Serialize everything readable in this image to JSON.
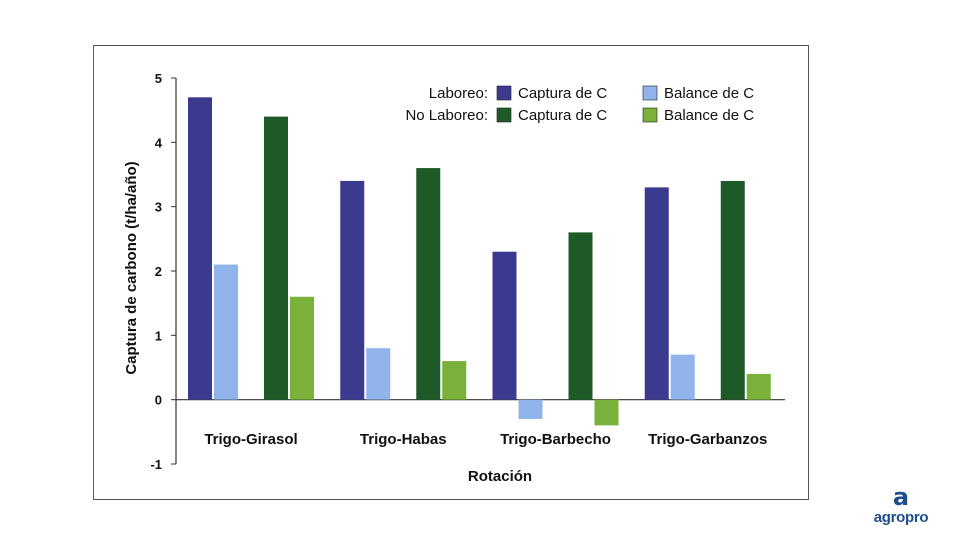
{
  "colors": {
    "laboreo_captura": "#3b3a8f",
    "laboreo_balance": "#8fb3ea",
    "no_laboreo_captura": "#1e5a28",
    "no_laboreo_balance": "#79b13a",
    "axis": "#333333"
  },
  "logo": {
    "mark": "a",
    "text": "agropro"
  },
  "legend": {
    "row1_label": "Laboreo:",
    "row2_label": "No Laboreo:",
    "captura": "Captura de C",
    "balance": "Balance de C"
  },
  "chart_data": {
    "type": "bar",
    "title": "",
    "xlabel": "Rotación",
    "ylabel": "Captura de carbono (t/ha/año)",
    "ylim": [
      -1,
      5
    ],
    "yticks": [
      "-1",
      "0",
      "1",
      "2",
      "3",
      "4",
      "5"
    ],
    "categories": [
      "Trigo-Girasol",
      "Trigo-Habas",
      "Trigo-Barbecho",
      "Trigo-Garbanzos"
    ],
    "series": [
      {
        "name": "Laboreo: Captura de C",
        "color_key": "laboreo_captura",
        "values": [
          4.7,
          3.4,
          2.3,
          3.3
        ]
      },
      {
        "name": "Laboreo: Balance de C",
        "color_key": "laboreo_balance",
        "values": [
          2.1,
          0.8,
          -0.3,
          0.7
        ]
      },
      {
        "name": "No Laboreo: Captura de C",
        "color_key": "no_laboreo_captura",
        "values": [
          4.4,
          3.6,
          2.6,
          3.4
        ]
      },
      {
        "name": "No Laboreo: Balance de C",
        "color_key": "no_laboreo_balance",
        "values": [
          1.6,
          0.6,
          -0.4,
          0.4
        ]
      }
    ],
    "legend_position": "top-right",
    "grid": false
  }
}
